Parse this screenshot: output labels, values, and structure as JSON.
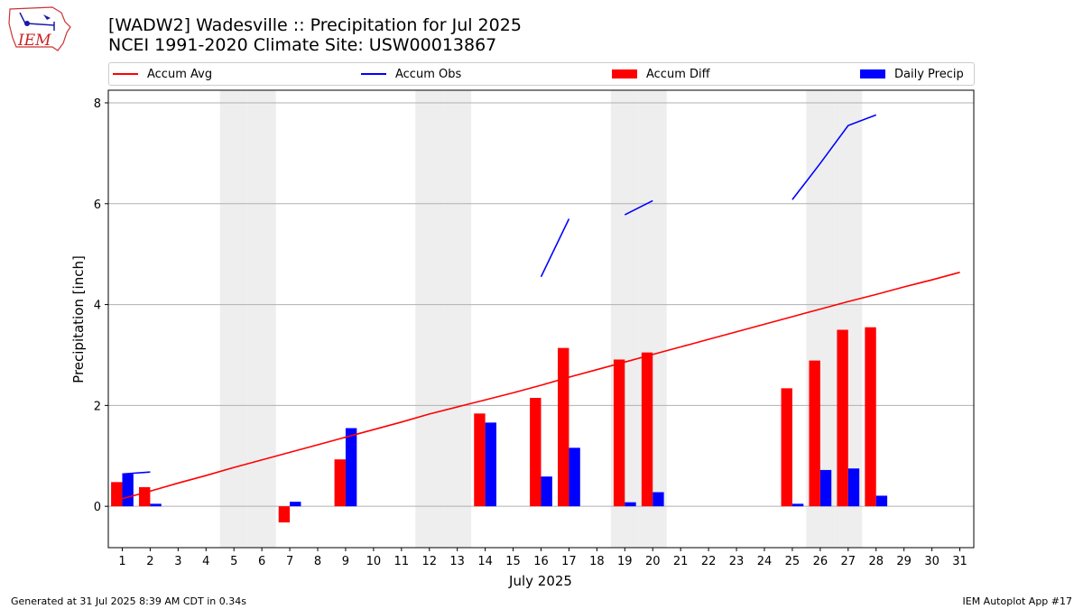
{
  "header": {
    "title_line1": "[WADW2] Wadesville :: Precipitation for Jul 2025",
    "title_line2": "NCEI 1991-2020 Climate Site: USW00013867",
    "logo_text": "IEM"
  },
  "footer": {
    "generated": "Generated at 31 Jul 2025 8:39 AM CDT in 0.34s",
    "app": "IEM Autoplot App #17"
  },
  "colors": {
    "accum_avg": "#ff0000",
    "accum_obs": "#0000ff",
    "accum_diff": "#ff0000",
    "daily_precip": "#0000ff",
    "weekend_shade": "#eeeeee",
    "grid": "#b0b0b0"
  },
  "chart_data": {
    "type": "bar",
    "xlabel": "July 2025",
    "ylabel": "Precipitation [inch]",
    "xlim": [
      0.5,
      31.5
    ],
    "ylim": [
      -0.82,
      8.25
    ],
    "yticks": [
      0,
      2,
      4,
      6,
      8
    ],
    "grid": "horizontal",
    "legend_position": "top",
    "categories": [
      "1",
      "2",
      "3",
      "4",
      "5",
      "6",
      "7",
      "8",
      "9",
      "10",
      "11",
      "12",
      "13",
      "14",
      "15",
      "16",
      "17",
      "18",
      "19",
      "20",
      "21",
      "22",
      "23",
      "24",
      "25",
      "26",
      "27",
      "28",
      "29",
      "30",
      "31"
    ],
    "weekend_days": [
      5,
      6,
      12,
      13,
      19,
      20,
      26,
      27
    ],
    "series": [
      {
        "name": "Accum Avg",
        "kind": "line",
        "values": [
          0.15,
          0.3,
          0.46,
          0.61,
          0.77,
          0.92,
          1.07,
          1.22,
          1.37,
          1.52,
          1.67,
          1.83,
          1.97,
          2.11,
          2.25,
          2.4,
          2.56,
          2.71,
          2.86,
          3.01,
          3.16,
          3.31,
          3.46,
          3.61,
          3.76,
          3.91,
          4.06,
          4.2,
          4.35,
          4.49,
          4.64
        ]
      },
      {
        "name": "Accum Obs",
        "kind": "line",
        "values": [
          0.64,
          0.68,
          null,
          null,
          null,
          null,
          null,
          null,
          null,
          null,
          null,
          null,
          null,
          null,
          null,
          4.55,
          5.7,
          null,
          5.78,
          6.06,
          null,
          null,
          null,
          null,
          6.08,
          6.8,
          7.55,
          7.76,
          null,
          null,
          null
        ]
      },
      {
        "name": "Accum Diff",
        "kind": "bar",
        "values": [
          0.48,
          0.38,
          null,
          null,
          null,
          null,
          -0.32,
          null,
          0.93,
          null,
          null,
          null,
          null,
          1.84,
          null,
          2.15,
          3.14,
          null,
          2.91,
          3.05,
          null,
          null,
          null,
          null,
          2.34,
          2.89,
          3.5,
          3.55,
          null,
          null,
          null
        ]
      },
      {
        "name": "Daily Precip",
        "kind": "bar",
        "values": [
          0.64,
          0.05,
          null,
          null,
          null,
          null,
          0.09,
          null,
          1.55,
          null,
          null,
          null,
          null,
          1.66,
          null,
          0.59,
          1.16,
          null,
          0.08,
          0.28,
          null,
          null,
          null,
          null,
          0.05,
          0.72,
          0.75,
          0.21,
          null,
          null,
          null
        ]
      }
    ]
  }
}
